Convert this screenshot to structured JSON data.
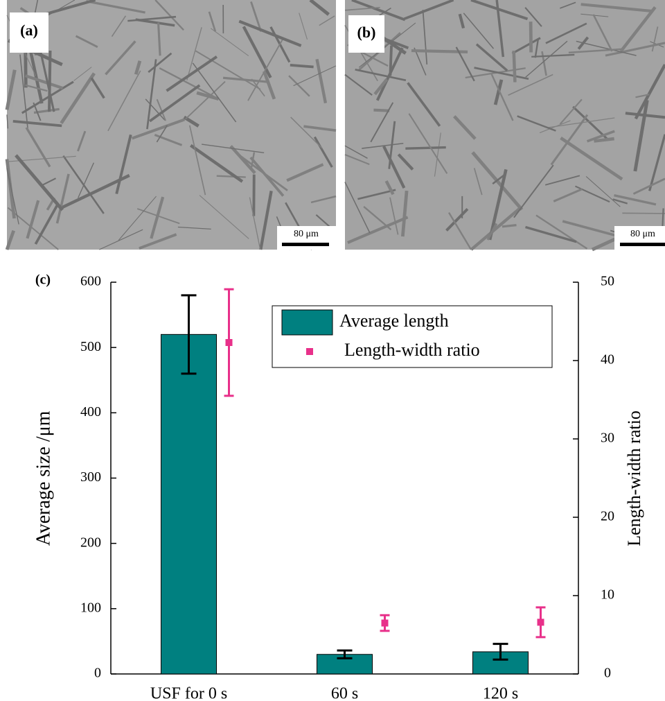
{
  "panels": {
    "a": {
      "label": "(a)",
      "scale": "80 μm"
    },
    "b": {
      "label": "(b)",
      "scale": "80 μm"
    },
    "c": {
      "label": "(c)"
    }
  },
  "chart_data": {
    "type": "bar",
    "categories": [
      "USF for 0 s",
      "60 s",
      "120 s"
    ],
    "ylabel": "Average size /μm",
    "y2label": "Length-width ratio",
    "ylim": [
      0,
      600
    ],
    "yticks": [
      0,
      100,
      200,
      300,
      400,
      500,
      600
    ],
    "y2lim": [
      0,
      50
    ],
    "y2ticks": [
      0,
      10,
      20,
      30,
      40,
      50
    ],
    "series": [
      {
        "name": "Average length",
        "color": "#008080",
        "values": [
          520,
          30,
          34
        ],
        "errors": [
          60,
          6,
          12
        ]
      },
      {
        "name": "Length-width ratio",
        "color": "#e8308a",
        "axis": "y2",
        "values": [
          42.3,
          6.5,
          6.6
        ],
        "errors": [
          6.8,
          1,
          1.9
        ]
      }
    ],
    "legend": "upper-right"
  }
}
